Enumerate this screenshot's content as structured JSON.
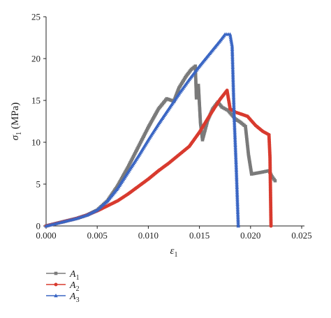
{
  "chart_data": {
    "type": "line",
    "xlabel": "ε",
    "xlabel_sub": "1",
    "ylabel": "σ",
    "ylabel_sub": "1",
    "ylabel_unit": " (MPa)",
    "xlim": [
      0,
      0.025
    ],
    "ylim": [
      0,
      25
    ],
    "xticks": [
      "0.000",
      "0.005",
      "0.010",
      "0.015",
      "0.020",
      "0.025"
    ],
    "yticks": [
      "0",
      "5",
      "10",
      "15",
      "20",
      "25"
    ],
    "grid": false,
    "legend_position": "bottom-left",
    "series": [
      {
        "name": "A",
        "name_sub": "1",
        "color": "#7a7a7a",
        "marker": "square",
        "points": [
          [
            0.0,
            0.0
          ],
          [
            0.001,
            0.3
          ],
          [
            0.002,
            0.6
          ],
          [
            0.003,
            0.9
          ],
          [
            0.004,
            1.3
          ],
          [
            0.005,
            1.9
          ],
          [
            0.006,
            3.0
          ],
          [
            0.007,
            4.8
          ],
          [
            0.008,
            7.0
          ],
          [
            0.009,
            9.4
          ],
          [
            0.01,
            11.8
          ],
          [
            0.011,
            14.0
          ],
          [
            0.0118,
            15.2
          ],
          [
            0.0125,
            14.9
          ],
          [
            0.013,
            16.5
          ],
          [
            0.0137,
            17.9
          ],
          [
            0.0142,
            18.7
          ],
          [
            0.0146,
            19.1
          ],
          [
            0.0147,
            15.3
          ],
          [
            0.0149,
            16.8
          ],
          [
            0.0151,
            12.3
          ],
          [
            0.0153,
            10.3
          ],
          [
            0.0158,
            12.6
          ],
          [
            0.0163,
            14.0
          ],
          [
            0.0168,
            14.8
          ],
          [
            0.0172,
            14.2
          ],
          [
            0.0178,
            13.8
          ],
          [
            0.0185,
            12.8
          ],
          [
            0.019,
            12.4
          ],
          [
            0.0195,
            11.9
          ],
          [
            0.0198,
            8.5
          ],
          [
            0.0201,
            6.2
          ],
          [
            0.021,
            6.4
          ],
          [
            0.0218,
            6.6
          ],
          [
            0.0221,
            5.9
          ],
          [
            0.0224,
            5.4
          ]
        ]
      },
      {
        "name": "A",
        "name_sub": "2",
        "color": "#d83a2e",
        "marker": "circle",
        "points": [
          [
            0.0,
            0.0
          ],
          [
            0.001,
            0.3
          ],
          [
            0.002,
            0.6
          ],
          [
            0.003,
            0.9
          ],
          [
            0.004,
            1.3
          ],
          [
            0.005,
            1.8
          ],
          [
            0.006,
            2.4
          ],
          [
            0.007,
            3.0
          ],
          [
            0.008,
            3.8
          ],
          [
            0.009,
            4.7
          ],
          [
            0.01,
            5.6
          ],
          [
            0.011,
            6.6
          ],
          [
            0.012,
            7.5
          ],
          [
            0.013,
            8.5
          ],
          [
            0.014,
            9.5
          ],
          [
            0.015,
            11.2
          ],
          [
            0.016,
            13.2
          ],
          [
            0.017,
            15.1
          ],
          [
            0.0177,
            16.2
          ],
          [
            0.018,
            14.0
          ],
          [
            0.0185,
            13.6
          ],
          [
            0.019,
            13.4
          ],
          [
            0.0197,
            13.1
          ],
          [
            0.0205,
            12.0
          ],
          [
            0.0212,
            11.3
          ],
          [
            0.0218,
            10.9
          ],
          [
            0.0219,
            8.2
          ],
          [
            0.022,
            0.0
          ]
        ]
      },
      {
        "name": "A",
        "name_sub": "3",
        "color": "#3a66c4",
        "marker": "triangle",
        "points": [
          [
            0.0,
            0.0
          ],
          [
            0.001,
            0.3
          ],
          [
            0.002,
            0.6
          ],
          [
            0.003,
            0.9
          ],
          [
            0.004,
            1.3
          ],
          [
            0.005,
            1.9
          ],
          [
            0.006,
            3.0
          ],
          [
            0.007,
            4.5
          ],
          [
            0.008,
            6.4
          ],
          [
            0.009,
            8.3
          ],
          [
            0.01,
            10.3
          ],
          [
            0.011,
            12.2
          ],
          [
            0.012,
            14.0
          ],
          [
            0.013,
            15.8
          ],
          [
            0.014,
            17.5
          ],
          [
            0.015,
            19.1
          ],
          [
            0.016,
            20.6
          ],
          [
            0.017,
            22.1
          ],
          [
            0.0175,
            22.9
          ],
          [
            0.018,
            22.9
          ],
          [
            0.0182,
            21.5
          ],
          [
            0.0184,
            13.0
          ],
          [
            0.0186,
            7.0
          ],
          [
            0.0188,
            0.0
          ]
        ]
      }
    ]
  }
}
